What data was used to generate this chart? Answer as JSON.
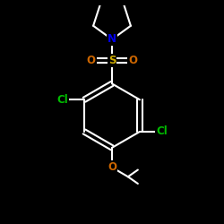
{
  "background_color": "#000000",
  "bond_color": "#ffffff",
  "atom_colors": {
    "N": "#0000ee",
    "O": "#cc6600",
    "S": "#ccaa00",
    "Cl": "#00bb00",
    "C": "#ffffff"
  },
  "bond_width": 1.5,
  "font_size": 8.5,
  "figsize": [
    2.5,
    2.5
  ],
  "dpi": 100
}
